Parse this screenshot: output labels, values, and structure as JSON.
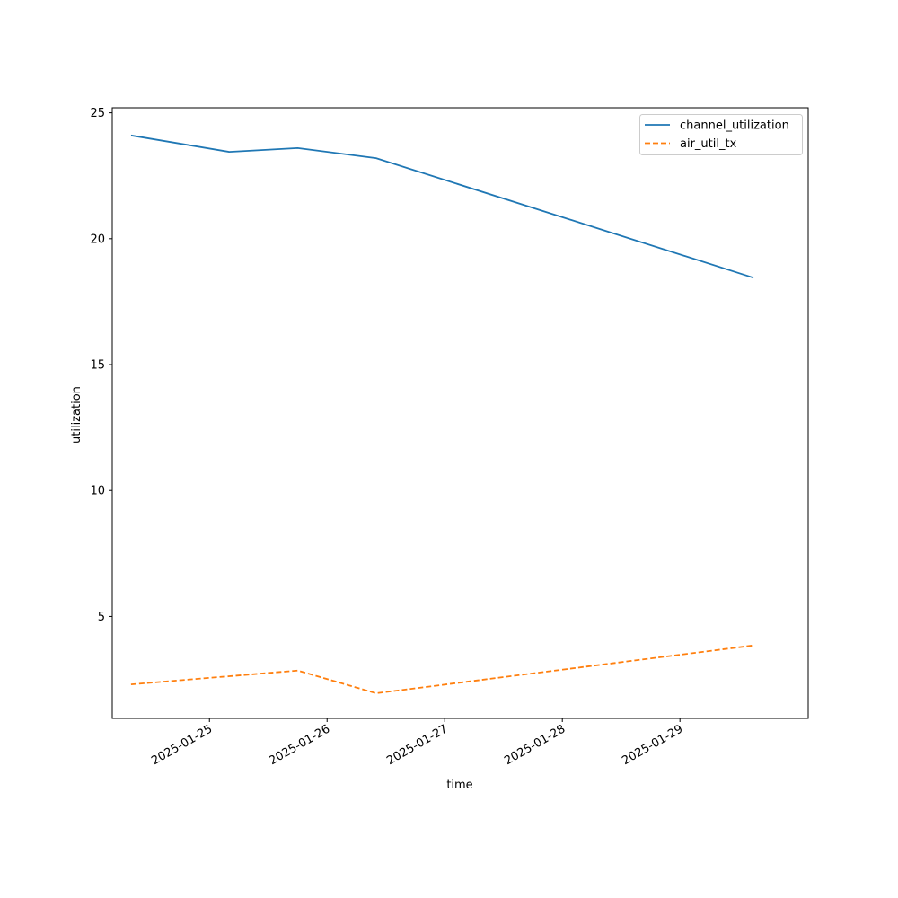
{
  "chart_data": {
    "type": "line",
    "title": "",
    "xlabel": "time",
    "ylabel": "utilization",
    "x_ticks": [
      "2025-01-25",
      "2025-01-26",
      "2025-01-27",
      "2025-01-28",
      "2025-01-29"
    ],
    "y_ticks": [
      5,
      10,
      15,
      20,
      25
    ],
    "xlim": [
      "2025-01-24 04:10",
      "2025-01-30 02:10"
    ],
    "ylim": [
      0.95,
      25.2
    ],
    "grid": false,
    "legend_position": "top-right",
    "series": [
      {
        "name": "channel_utilization",
        "color": "#1f77b4",
        "style": "solid",
        "points": [
          {
            "x": "2025-01-24 08:00",
            "y": 24.1
          },
          {
            "x": "2025-01-25 04:00",
            "y": 23.45
          },
          {
            "x": "2025-01-25 18:00",
            "y": 23.6
          },
          {
            "x": "2025-01-26 10:00",
            "y": 23.2
          },
          {
            "x": "2025-01-29 15:00",
            "y": 18.45
          }
        ]
      },
      {
        "name": "air_util_tx",
        "color": "#ff7f0e",
        "style": "dashed",
        "points": [
          {
            "x": "2025-01-24 08:00",
            "y": 2.3
          },
          {
            "x": "2025-01-25 18:00",
            "y": 2.85
          },
          {
            "x": "2025-01-26 10:00",
            "y": 1.95
          },
          {
            "x": "2025-01-29 15:00",
            "y": 3.85
          }
        ]
      }
    ]
  }
}
